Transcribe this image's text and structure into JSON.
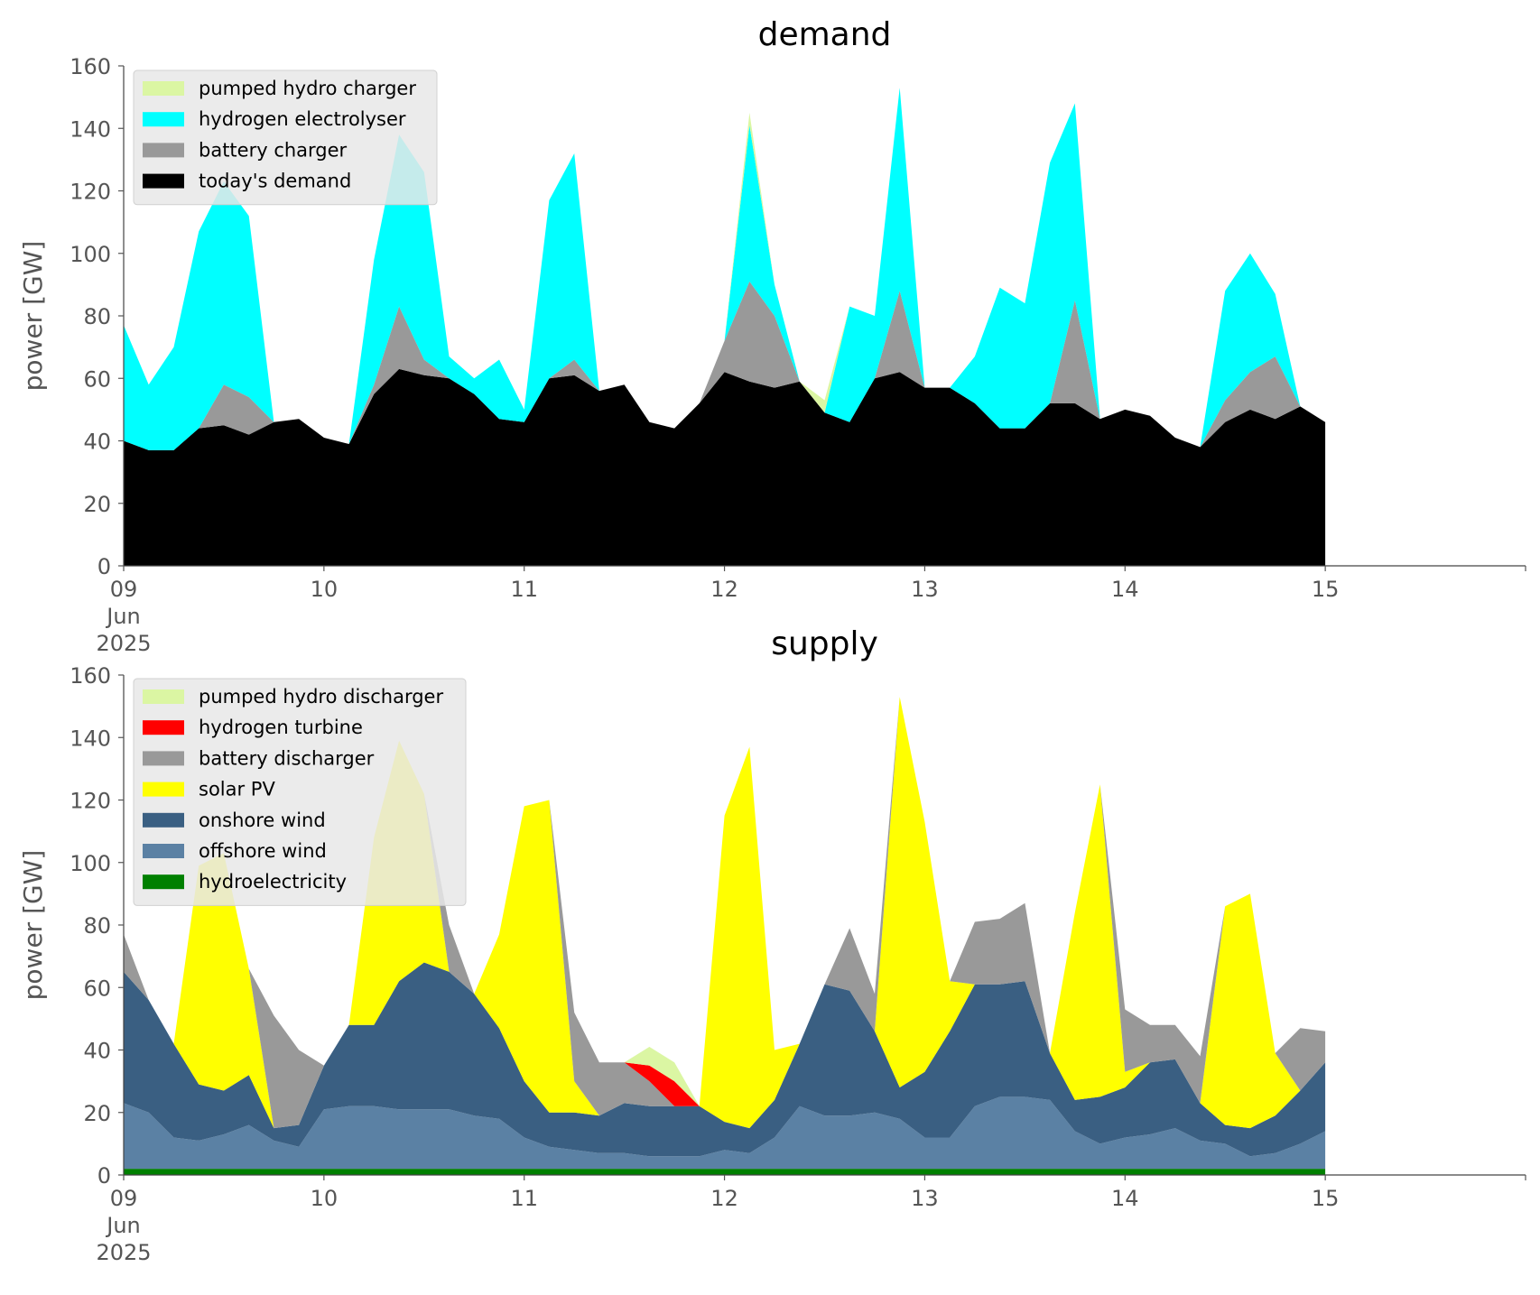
{
  "chart_data": [
    {
      "type": "area",
      "stacked": true,
      "title": "demand",
      "ylabel": "power [GW]",
      "xlabel": "",
      "ylim": [
        0,
        160
      ],
      "yticks": [
        0,
        20,
        40,
        60,
        80,
        100,
        120,
        140,
        160
      ],
      "x_range": [
        "2025-06-09 00:00",
        "2025-06-16 00:00"
      ],
      "x_step_hours": 3,
      "xticks": [
        {
          "date": "2025-06-09",
          "label": [
            "09",
            "Jun",
            "2025"
          ]
        },
        {
          "date": "2025-06-10",
          "label": [
            "10"
          ]
        },
        {
          "date": "2025-06-11",
          "label": [
            "11"
          ]
        },
        {
          "date": "2025-06-12",
          "label": [
            "12"
          ]
        },
        {
          "date": "2025-06-13",
          "label": [
            "13"
          ]
        },
        {
          "date": "2025-06-14",
          "label": [
            "14"
          ]
        },
        {
          "date": "2025-06-15",
          "label": [
            "15"
          ]
        }
      ],
      "grid": false,
      "legend": "top-left",
      "series": [
        {
          "name": "today's demand",
          "color": "#000000",
          "values": [
            40,
            37,
            37,
            44,
            45,
            42,
            46,
            47,
            41,
            39,
            55,
            63,
            61,
            60,
            55,
            47,
            46,
            60,
            61,
            56,
            58,
            46,
            44,
            52,
            62,
            59,
            57,
            59,
            49,
            46,
            60,
            62,
            57,
            57,
            52,
            44,
            44,
            52,
            52,
            47,
            50,
            48,
            41,
            38,
            46,
            50,
            47,
            51,
            46
          ]
        },
        {
          "name": "battery charger",
          "color": "#999999",
          "values": [
            0,
            0,
            0,
            0,
            13,
            12,
            0,
            0,
            0,
            0,
            3,
            20,
            5,
            0,
            0,
            0,
            0,
            0,
            5,
            0,
            0,
            0,
            0,
            0,
            10,
            32,
            23,
            0,
            0,
            0,
            0,
            26,
            0,
            0,
            0,
            0,
            0,
            0,
            33,
            0,
            0,
            0,
            0,
            0,
            7,
            12,
            20,
            0,
            0
          ]
        },
        {
          "name": "hydrogen electrolyser",
          "color": "#00ffff",
          "values": [
            37,
            21,
            33,
            63,
            65,
            58,
            0,
            0,
            0,
            0,
            40,
            55,
            60,
            7,
            5,
            19,
            4,
            57,
            66,
            0,
            0,
            0,
            0,
            0,
            0,
            50,
            10,
            0,
            0,
            37,
            20,
            65,
            0,
            0,
            15,
            45,
            40,
            77,
            63,
            0,
            0,
            0,
            0,
            0,
            35,
            38,
            20,
            0,
            0
          ]
        },
        {
          "name": "pumped hydro charger",
          "color": "#dbf6a3",
          "values": [
            0,
            0,
            0,
            0,
            0,
            0,
            0,
            0,
            0,
            0,
            0,
            0,
            0,
            0,
            0,
            0,
            0,
            0,
            0,
            0,
            0,
            0,
            0,
            0,
            0,
            4,
            0,
            0,
            4,
            0,
            0,
            0,
            0,
            0,
            0,
            0,
            0,
            0,
            0,
            0,
            0,
            0,
            0,
            0,
            0,
            0,
            0,
            0,
            0
          ]
        }
      ],
      "legend_order": [
        "pumped hydro charger",
        "hydrogen electrolyser",
        "battery charger",
        "today's demand"
      ]
    },
    {
      "type": "area",
      "stacked": true,
      "title": "supply",
      "ylabel": "power [GW]",
      "xlabel": "",
      "ylim": [
        0,
        160
      ],
      "yticks": [
        0,
        20,
        40,
        60,
        80,
        100,
        120,
        140,
        160
      ],
      "x_range": [
        "2025-06-09 00:00",
        "2025-06-16 00:00"
      ],
      "x_step_hours": 3,
      "xticks": [
        {
          "date": "2025-06-09",
          "label": [
            "09",
            "Jun",
            "2025"
          ]
        },
        {
          "date": "2025-06-10",
          "label": [
            "10"
          ]
        },
        {
          "date": "2025-06-11",
          "label": [
            "11"
          ]
        },
        {
          "date": "2025-06-12",
          "label": [
            "12"
          ]
        },
        {
          "date": "2025-06-13",
          "label": [
            "13"
          ]
        },
        {
          "date": "2025-06-14",
          "label": [
            "14"
          ]
        },
        {
          "date": "2025-06-15",
          "label": [
            "15"
          ]
        }
      ],
      "grid": false,
      "legend": "top-left",
      "series": [
        {
          "name": "hydroelectricity",
          "color": "#008000",
          "values": [
            2,
            2,
            2,
            2,
            2,
            2,
            2,
            2,
            2,
            2,
            2,
            2,
            2,
            2,
            2,
            2,
            2,
            2,
            2,
            2,
            2,
            2,
            2,
            2,
            2,
            2,
            2,
            2,
            2,
            2,
            2,
            2,
            2,
            2,
            2,
            2,
            2,
            2,
            2,
            2,
            2,
            2,
            2,
            2,
            2,
            2,
            2,
            2,
            2
          ]
        },
        {
          "name": "offshore wind",
          "color": "#5b81a4",
          "values": [
            21,
            18,
            10,
            9,
            11,
            14,
            9,
            7,
            19,
            20,
            20,
            19,
            19,
            19,
            17,
            16,
            10,
            7,
            6,
            5,
            5,
            4,
            4,
            4,
            6,
            5,
            10,
            20,
            17,
            17,
            18,
            16,
            10,
            10,
            20,
            23,
            23,
            22,
            12,
            8,
            10,
            11,
            13,
            9,
            8,
            4,
            5,
            8,
            12
          ]
        },
        {
          "name": "onshore wind",
          "color": "#3a5f82",
          "values": [
            42,
            36,
            30,
            18,
            14,
            16,
            4,
            7,
            14,
            26,
            26,
            41,
            47,
            44,
            39,
            29,
            18,
            11,
            12,
            12,
            16,
            16,
            16,
            16,
            9,
            8,
            12,
            20,
            42,
            40,
            26,
            10,
            21,
            34,
            39,
            36,
            37,
            15,
            10,
            15,
            16,
            23,
            22,
            12,
            6,
            9,
            12,
            17,
            22
          ]
        },
        {
          "name": "solar PV",
          "color": "#ffff00",
          "values": [
            0,
            0,
            0,
            70,
            76,
            34,
            0,
            0,
            0,
            0,
            60,
            77,
            54,
            0,
            0,
            30,
            88,
            100,
            10,
            0,
            0,
            0,
            0,
            0,
            98,
            122,
            16,
            0,
            0,
            0,
            0,
            125,
            80,
            16,
            0,
            0,
            0,
            0,
            60,
            100,
            5,
            0,
            0,
            0,
            70,
            75,
            20,
            0,
            0
          ]
        },
        {
          "name": "battery discharger",
          "color": "#999999",
          "values": [
            12,
            0,
            0,
            0,
            0,
            0,
            36,
            24,
            0,
            0,
            0,
            0,
            0,
            15,
            0,
            0,
            0,
            0,
            22,
            17,
            13,
            8,
            0,
            0,
            0,
            0,
            0,
            0,
            0,
            20,
            12,
            0,
            0,
            0,
            20,
            21,
            25,
            0,
            0,
            0,
            20,
            12,
            11,
            15,
            0,
            0,
            0,
            20,
            10
          ]
        },
        {
          "name": "hydrogen turbine",
          "color": "#ff0000",
          "values": [
            0,
            0,
            0,
            0,
            0,
            0,
            0,
            0,
            0,
            0,
            0,
            0,
            0,
            0,
            0,
            0,
            0,
            0,
            0,
            0,
            0,
            5,
            8,
            0,
            0,
            0,
            0,
            0,
            0,
            0,
            0,
            0,
            0,
            0,
            0,
            0,
            0,
            0,
            0,
            0,
            0,
            0,
            0,
            0,
            0,
            0,
            0,
            0,
            0
          ]
        },
        {
          "name": "pumped hydro discharger",
          "color": "#dbf6a3",
          "values": [
            0,
            0,
            0,
            0,
            0,
            0,
            0,
            0,
            0,
            0,
            0,
            0,
            0,
            0,
            0,
            0,
            0,
            0,
            0,
            0,
            0,
            6,
            6,
            0,
            0,
            0,
            0,
            0,
            0,
            0,
            0,
            0,
            0,
            0,
            0,
            0,
            0,
            0,
            0,
            0,
            0,
            0,
            0,
            0,
            0,
            0,
            0,
            0,
            0
          ]
        }
      ],
      "legend_order": [
        "pumped hydro discharger",
        "hydrogen turbine",
        "battery discharger",
        "solar PV",
        "onshore wind",
        "offshore wind",
        "hydroelectricity"
      ]
    }
  ]
}
